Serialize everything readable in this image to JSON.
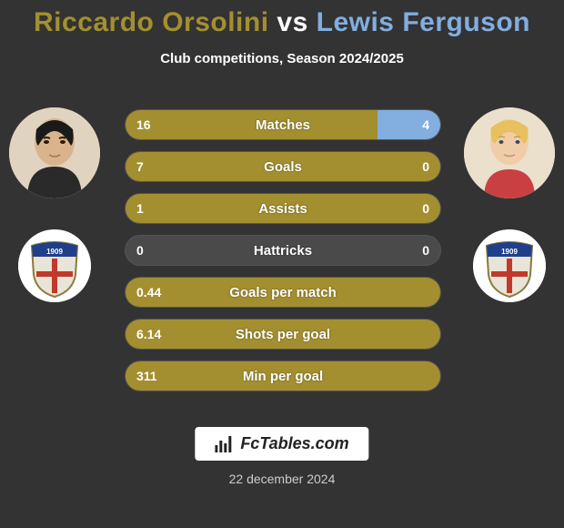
{
  "title": {
    "player1": "Riccardo Orsolini",
    "vs": "vs",
    "player2": "Lewis Ferguson",
    "color_player1": "#a38f2f",
    "color_vs": "#ffffff",
    "color_player2": "#82aee0"
  },
  "subtitle": "Club competitions, Season 2024/2025",
  "footer_brand": "FcTables.com",
  "footer_date": "22 december 2024",
  "colors": {
    "bar_left": "#a38f2f",
    "bar_right": "#82aee0",
    "bar_empty": "#4a4a4a",
    "row_bg": "#3a3a3a",
    "text": "#ffffff",
    "background": "#333333"
  },
  "stats": [
    {
      "label": "Matches",
      "left_val": "16",
      "right_val": "4",
      "left_pct": 80,
      "right_pct": 20
    },
    {
      "label": "Goals",
      "left_val": "7",
      "right_val": "0",
      "left_pct": 100,
      "right_pct": 0
    },
    {
      "label": "Assists",
      "left_val": "1",
      "right_val": "0",
      "left_pct": 100,
      "right_pct": 0
    },
    {
      "label": "Hattricks",
      "left_val": "0",
      "right_val": "0",
      "left_pct": 0,
      "right_pct": 0
    },
    {
      "label": "Goals per match",
      "left_val": "0.44",
      "right_val": "",
      "left_pct": 100,
      "right_pct": 0
    },
    {
      "label": "Shots per goal",
      "left_val": "6.14",
      "right_val": "",
      "left_pct": 100,
      "right_pct": 0
    },
    {
      "label": "Min per goal",
      "left_val": "311",
      "right_val": "",
      "left_pct": 100,
      "right_pct": 0
    }
  ],
  "crest": {
    "shield_fill": "#e8e4d8",
    "shield_stroke": "#8a7a3a",
    "top_band": "#1f3f8a",
    "year_text": "1909",
    "cross_red": "#c0392b"
  }
}
